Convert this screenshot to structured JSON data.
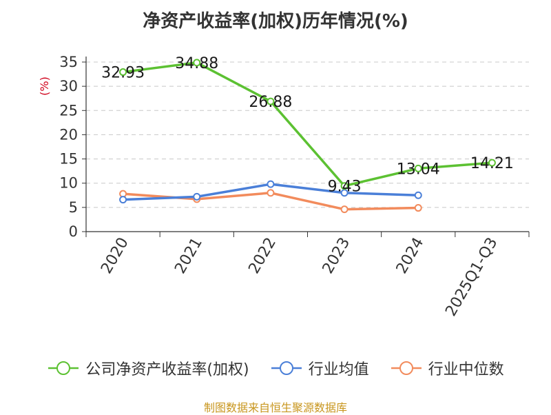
{
  "chart_data": {
    "type": "line",
    "title": "净资产收益率(加权)历年情况(%)",
    "ylabel": "(%)",
    "xlabel": "",
    "categories": [
      "2020",
      "2021",
      "2022",
      "2023",
      "2024",
      "2025Q1-Q3"
    ],
    "ylim": [
      0,
      35
    ],
    "yticks": [
      0,
      5,
      10,
      15,
      20,
      25,
      30,
      35
    ],
    "grid": true,
    "legend_position": "bottom",
    "series": [
      {
        "name": "公司净资产收益率(加权)",
        "color": "#5cc132",
        "values": [
          32.93,
          34.88,
          26.88,
          9.43,
          13.04,
          14.21
        ],
        "labels": [
          "32.93",
          "34.88",
          "26.88",
          "9.43",
          "13.04",
          "14.21"
        ]
      },
      {
        "name": "行业均值",
        "color": "#4a7fd8",
        "values": [
          6.6,
          7.2,
          9.8,
          8.0,
          7.5,
          null
        ]
      },
      {
        "name": "行业中位数",
        "color": "#f28b5c",
        "values": [
          7.8,
          6.7,
          8.0,
          4.6,
          4.9,
          null
        ]
      }
    ]
  },
  "source": "制图数据来自恒生聚源数据库"
}
